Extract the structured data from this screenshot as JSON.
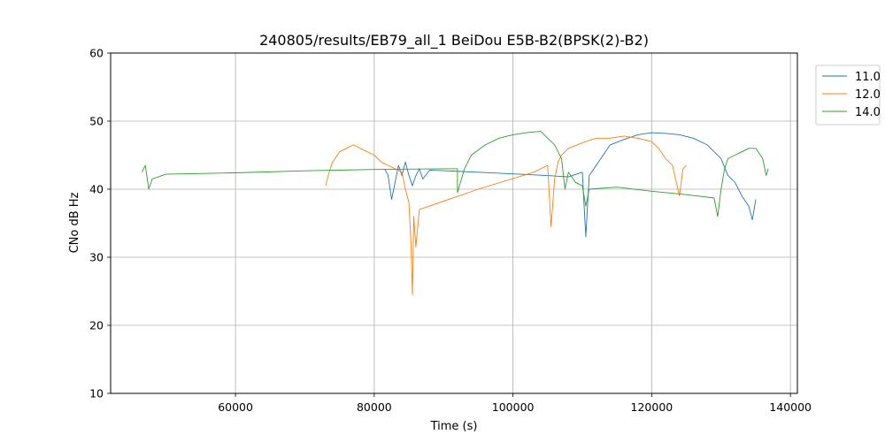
{
  "chart_data": {
    "type": "line",
    "title": "240805/results/EB79_all_1 BeiDou E5B-B2(BPSK(2)-B2)",
    "xlabel": "Time (s)",
    "ylabel": "CNo dB Hz",
    "xlim": [
      42000,
      141000
    ],
    "ylim": [
      10,
      60
    ],
    "xticks": [
      60000,
      80000,
      100000,
      120000,
      140000
    ],
    "xtick_labels": [
      "60000",
      "80000",
      "100000",
      "120000",
      "140000"
    ],
    "yticks": [
      10,
      20,
      30,
      40,
      50,
      60
    ],
    "ytick_labels": [
      "10",
      "20",
      "30",
      "40",
      "50",
      "60"
    ],
    "grid": true,
    "legend_position": "outside-top-right",
    "series": [
      {
        "name": "11.0",
        "color": "#1f77b4",
        "points": [
          [
            81500,
            43.0
          ],
          [
            82000,
            42.0
          ],
          [
            82500,
            38.5
          ],
          [
            83000,
            41.0
          ],
          [
            83500,
            43.5
          ],
          [
            84000,
            42.0
          ],
          [
            84500,
            44.0
          ],
          [
            85000,
            42.0
          ],
          [
            85500,
            40.5
          ],
          [
            86000,
            42.0
          ],
          [
            86500,
            43.0
          ],
          [
            87000,
            41.5
          ],
          [
            88000,
            42.8
          ],
          [
            95000,
            42.5
          ],
          [
            105000,
            42.0
          ],
          [
            108000,
            41.8
          ],
          [
            110000,
            42.5
          ],
          [
            110500,
            33.0
          ],
          [
            111000,
            42.0
          ],
          [
            112000,
            43.5
          ],
          [
            113000,
            45.0
          ],
          [
            114000,
            46.5
          ],
          [
            116000,
            47.3
          ],
          [
            118000,
            48.0
          ],
          [
            120000,
            48.3
          ],
          [
            122000,
            48.2
          ],
          [
            124000,
            48.0
          ],
          [
            126000,
            47.5
          ],
          [
            128000,
            46.5
          ],
          [
            130000,
            44.5
          ],
          [
            131000,
            42.0
          ],
          [
            132000,
            41.0
          ],
          [
            133000,
            39.0
          ],
          [
            134000,
            37.5
          ],
          [
            134500,
            35.5
          ],
          [
            135000,
            38.5
          ]
        ]
      },
      {
        "name": "12.0",
        "color": "#ff7f0e",
        "points": [
          [
            73000,
            40.5
          ],
          [
            73500,
            42.5
          ],
          [
            74000,
            44.0
          ],
          [
            75000,
            45.5
          ],
          [
            76000,
            46.0
          ],
          [
            77000,
            46.5
          ],
          [
            78000,
            46.0
          ],
          [
            79000,
            45.5
          ],
          [
            80000,
            45.0
          ],
          [
            81000,
            44.0
          ],
          [
            82000,
            43.5
          ],
          [
            83000,
            43.0
          ],
          [
            84000,
            42.5
          ],
          [
            84500,
            40.0
          ],
          [
            85000,
            38.0
          ],
          [
            85300,
            32.0
          ],
          [
            85500,
            24.5
          ],
          [
            85700,
            36.0
          ],
          [
            86000,
            31.5
          ],
          [
            86500,
            37.0
          ],
          [
            95000,
            40.0
          ],
          [
            103000,
            42.5
          ],
          [
            105000,
            43.5
          ],
          [
            105500,
            34.5
          ],
          [
            106000,
            41.5
          ],
          [
            106500,
            44.0
          ],
          [
            107000,
            45.0
          ],
          [
            108000,
            46.0
          ],
          [
            110000,
            46.8
          ],
          [
            112000,
            47.5
          ],
          [
            114000,
            47.5
          ],
          [
            116000,
            47.8
          ],
          [
            118000,
            47.5
          ],
          [
            120000,
            47.0
          ],
          [
            121000,
            46.0
          ],
          [
            122000,
            44.5
          ],
          [
            123000,
            43.5
          ],
          [
            124000,
            39.0
          ],
          [
            124500,
            43.0
          ],
          [
            125000,
            43.5
          ]
        ]
      },
      {
        "name": "14.0",
        "color": "#2ca02c",
        "points": [
          [
            46500,
            42.5
          ],
          [
            47000,
            43.5
          ],
          [
            47500,
            40.0
          ],
          [
            48000,
            41.5
          ],
          [
            50000,
            42.2
          ],
          [
            60000,
            42.4
          ],
          [
            70000,
            42.7
          ],
          [
            80000,
            42.9
          ],
          [
            90000,
            43.0
          ],
          [
            92000,
            43.0
          ],
          [
            92000,
            39.5
          ],
          [
            93000,
            43.0
          ],
          [
            94000,
            45.0
          ],
          [
            96000,
            46.5
          ],
          [
            98000,
            47.5
          ],
          [
            100000,
            48.0
          ],
          [
            102000,
            48.3
          ],
          [
            104000,
            48.5
          ],
          [
            105000,
            47.5
          ],
          [
            106000,
            46.5
          ],
          [
            107000,
            44.5
          ],
          [
            107500,
            40.0
          ],
          [
            108000,
            42.5
          ],
          [
            109000,
            41.0
          ],
          [
            110000,
            40.5
          ],
          [
            110500,
            37.5
          ],
          [
            111000,
            40.0
          ],
          [
            115000,
            40.3
          ],
          [
            120000,
            39.7
          ],
          [
            125000,
            39.2
          ],
          [
            129000,
            38.7
          ],
          [
            129500,
            36.0
          ],
          [
            130000,
            40.0
          ],
          [
            130500,
            43.0
          ],
          [
            131000,
            44.5
          ],
          [
            132000,
            45.0
          ],
          [
            133000,
            45.5
          ],
          [
            134000,
            46.0
          ],
          [
            135000,
            46.0
          ],
          [
            136000,
            44.5
          ],
          [
            136500,
            42.0
          ],
          [
            136800,
            43.0
          ]
        ]
      }
    ]
  }
}
